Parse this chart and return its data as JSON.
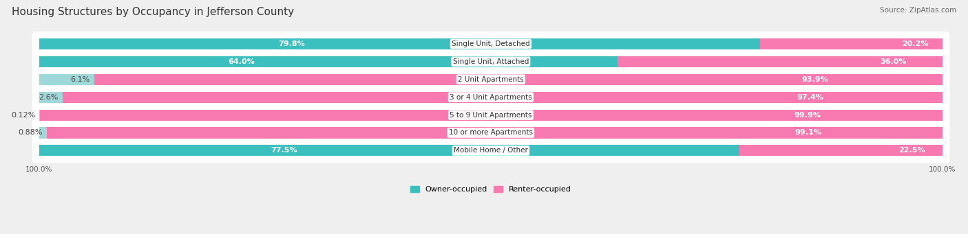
{
  "title": "Housing Structures by Occupancy in Jefferson County",
  "source": "Source: ZipAtlas.com",
  "categories": [
    "Single Unit, Detached",
    "Single Unit, Attached",
    "2 Unit Apartments",
    "3 or 4 Unit Apartments",
    "5 to 9 Unit Apartments",
    "10 or more Apartments",
    "Mobile Home / Other"
  ],
  "owner_pct": [
    79.8,
    64.0,
    6.1,
    2.6,
    0.12,
    0.88,
    77.5
  ],
  "renter_pct": [
    20.2,
    36.0,
    93.9,
    97.4,
    99.9,
    99.1,
    22.5
  ],
  "owner_labels": [
    "79.8%",
    "64.0%",
    "6.1%",
    "2.6%",
    "0.12%",
    "0.88%",
    "77.5%"
  ],
  "renter_labels": [
    "20.2%",
    "36.0%",
    "93.9%",
    "97.4%",
    "99.9%",
    "99.1%",
    "22.5%"
  ],
  "owner_color": "#3bbfbf",
  "renter_color": "#f879b0",
  "owner_color_light": "#9fd8d8",
  "renter_color_light": "#f9c0d5",
  "bg_color": "#efefef",
  "title_fontsize": 11,
  "label_fontsize": 8,
  "cat_fontsize": 7.5,
  "axis_fontsize": 7.5,
  "legend_fontsize": 8,
  "source_fontsize": 7.5
}
